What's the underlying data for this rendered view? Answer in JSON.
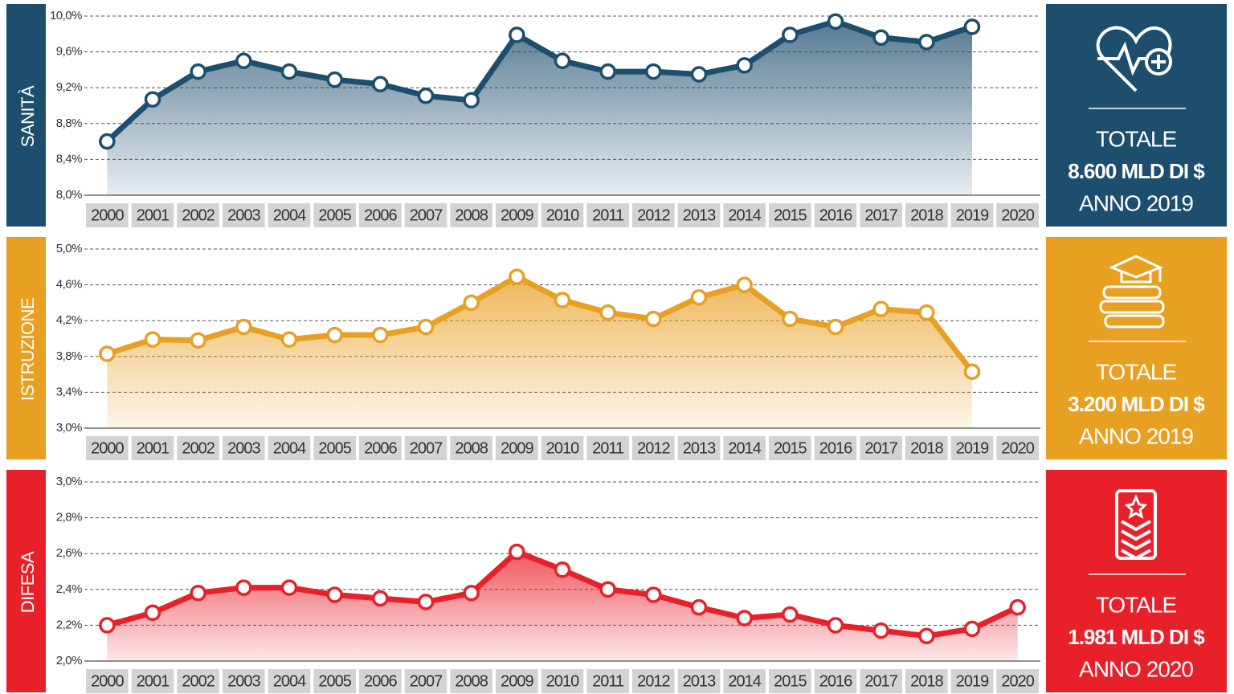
{
  "chart_data": [
    {
      "type": "line",
      "label": "SANITÀ",
      "color": "#1d4e6e",
      "grid": true,
      "categories": [
        "2000",
        "2001",
        "2002",
        "2003",
        "2004",
        "2005",
        "2006",
        "2007",
        "2008",
        "2009",
        "2010",
        "2011",
        "2012",
        "2013",
        "2014",
        "2015",
        "2016",
        "2017",
        "2018",
        "2019",
        "2020"
      ],
      "values": [
        8.6,
        9.07,
        9.38,
        9.5,
        9.38,
        9.29,
        9.24,
        9.11,
        9.06,
        9.79,
        9.5,
        9.38,
        9.38,
        9.35,
        9.45,
        9.79,
        9.94,
        9.76,
        9.71,
        9.88,
        null
      ],
      "ylim": [
        8,
        10
      ],
      "yticks": [
        {
          "value": 8,
          "label": "8,0%"
        },
        {
          "value": 8.4,
          "label": "8,4%"
        },
        {
          "value": 8.8,
          "label": "8,8%"
        },
        {
          "value": 9.2,
          "label": "9,2%"
        },
        {
          "value": 9.6,
          "label": "9,6%"
        },
        {
          "value": 10,
          "label": "10,0%"
        }
      ],
      "total_label": "TOTALE",
      "total_value": "8.600 MLD DI $",
      "total_year": "ANNO 2019"
    },
    {
      "type": "line",
      "label": "ISTRUZIONE",
      "color": "#e8a023",
      "grid": true,
      "categories": [
        "2000",
        "2001",
        "2002",
        "2003",
        "2004",
        "2005",
        "2006",
        "2007",
        "2008",
        "2009",
        "2010",
        "2011",
        "2012",
        "2013",
        "2014",
        "2015",
        "2016",
        "2017",
        "2018",
        "2019",
        "2020"
      ],
      "values": [
        3.83,
        3.99,
        3.98,
        4.13,
        3.99,
        4.04,
        4.04,
        4.13,
        4.4,
        4.69,
        4.43,
        4.29,
        4.22,
        4.46,
        4.6,
        4.22,
        4.13,
        4.33,
        4.29,
        3.63,
        null
      ],
      "ylim": [
        3,
        5
      ],
      "yticks": [
        {
          "value": 3,
          "label": "3,0%"
        },
        {
          "value": 3.4,
          "label": "3,4%"
        },
        {
          "value": 3.8,
          "label": "3,8%"
        },
        {
          "value": 4.2,
          "label": "4,2%"
        },
        {
          "value": 4.6,
          "label": "4,6%"
        },
        {
          "value": 5,
          "label": "5,0%"
        }
      ],
      "total_label": "TOTALE",
      "total_value": "3.200 MLD DI $",
      "total_year": "ANNO 2019"
    },
    {
      "type": "line",
      "label": "DIFESA",
      "color": "#e8202a",
      "grid": true,
      "categories": [
        "2000",
        "2001",
        "2002",
        "2003",
        "2004",
        "2005",
        "2006",
        "2007",
        "2008",
        "2009",
        "2010",
        "2011",
        "2012",
        "2013",
        "2014",
        "2015",
        "2016",
        "2017",
        "2018",
        "2019",
        "2020"
      ],
      "values": [
        2.2,
        2.27,
        2.38,
        2.41,
        2.41,
        2.37,
        2.35,
        2.33,
        2.38,
        2.61,
        2.51,
        2.4,
        2.37,
        2.3,
        2.24,
        2.26,
        2.2,
        2.17,
        2.14,
        2.18,
        2.3
      ],
      "ylim": [
        2,
        3
      ],
      "yticks": [
        {
          "value": 2,
          "label": "2,0%"
        },
        {
          "value": 2.2,
          "label": "2,2%"
        },
        {
          "value": 2.4,
          "label": "2,4%"
        },
        {
          "value": 2.6,
          "label": "2,6%"
        },
        {
          "value": 2.8,
          "label": "2,8%"
        },
        {
          "value": 3,
          "label": "3,0%"
        }
      ],
      "total_label": "TOTALE",
      "total_value": "1.981 MLD DI $",
      "total_year": "ANNO 2020"
    }
  ]
}
